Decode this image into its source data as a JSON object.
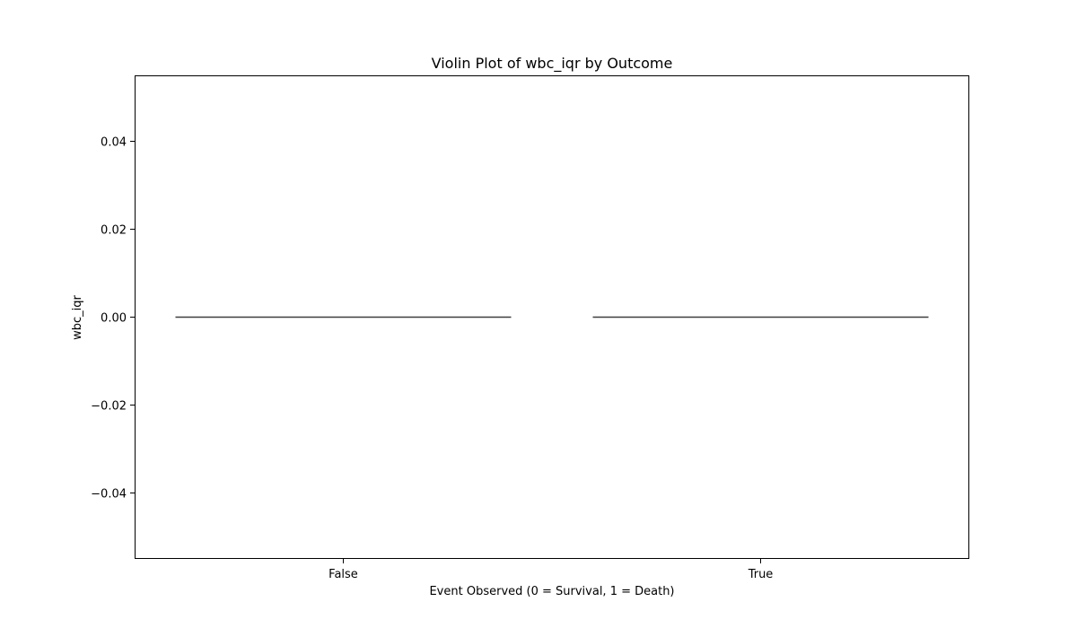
{
  "chart_data": {
    "type": "violin",
    "title": "Violin Plot of wbc_iqr by Outcome",
    "xlabel": "Event Observed (0 = Survival, 1 = Death)",
    "ylabel": "wbc_iqr",
    "categories": [
      "False",
      "True"
    ],
    "series": [
      {
        "category": "False",
        "values": [
          0.0
        ],
        "median": 0.0
      },
      {
        "category": "True",
        "values": [
          0.0
        ],
        "median": 0.0
      }
    ],
    "ylim": [
      -0.055,
      0.055
    ],
    "yticks": [
      -0.04,
      -0.02,
      0.0,
      0.02,
      0.04
    ],
    "ytick_labels": [
      "−0.04",
      "−0.02",
      "0.00",
      "0.02",
      "0.04"
    ],
    "grid": false,
    "line_color": "#3f3f3f"
  }
}
